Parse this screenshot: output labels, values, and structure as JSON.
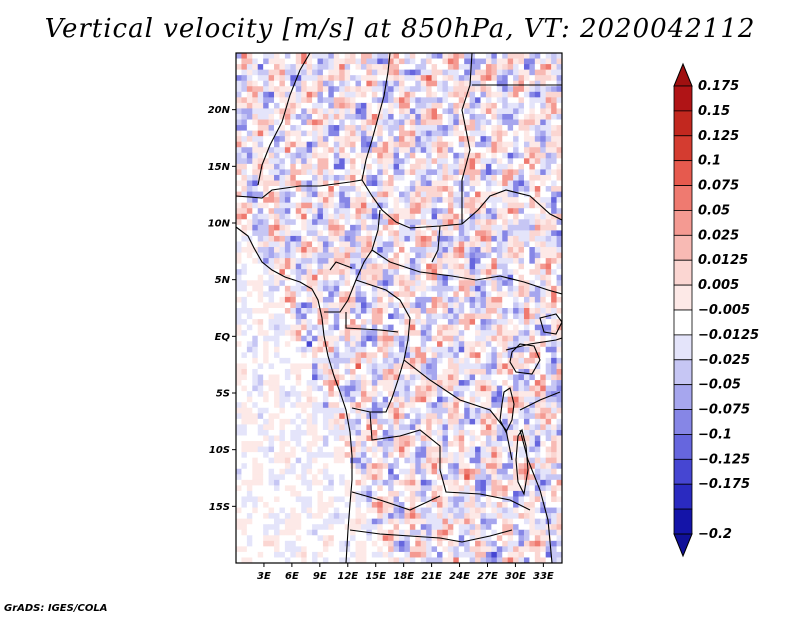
{
  "title": "Vertical velocity [m/s] at 850hPa, VT: 2020042112",
  "credit": "GrADS: IGES/COLA",
  "map": {
    "lon_range": [
      0,
      35
    ],
    "lat_range": [
      -20,
      25
    ],
    "lat_ticks": [
      {
        "lat": 20,
        "label": "20N"
      },
      {
        "lat": 15,
        "label": "15N"
      },
      {
        "lat": 10,
        "label": "10N"
      },
      {
        "lat": 5,
        "label": "5N"
      },
      {
        "lat": 0,
        "label": "EQ"
      },
      {
        "lat": -5,
        "label": "5S"
      },
      {
        "lat": -10,
        "label": "10S"
      },
      {
        "lat": -15,
        "label": "15S"
      }
    ],
    "lon_ticks": [
      {
        "lon": 3,
        "label": "3E"
      },
      {
        "lon": 6,
        "label": "6E"
      },
      {
        "lon": 9,
        "label": "9E"
      },
      {
        "lon": 12,
        "label": "12E"
      },
      {
        "lon": 15,
        "label": "15E"
      },
      {
        "lon": 18,
        "label": "18E"
      },
      {
        "lon": 21,
        "label": "21E"
      },
      {
        "lon": 24,
        "label": "24E"
      },
      {
        "lon": 27,
        "label": "27E"
      },
      {
        "lon": 30,
        "label": "30E"
      },
      {
        "lon": 33,
        "label": "33E"
      }
    ]
  },
  "colorbar": {
    "entries": [
      {
        "label": "0.175",
        "color": "#b01416"
      },
      {
        "label": "0.15",
        "color": "#c2281f"
      },
      {
        "label": "0.125",
        "color": "#d43c30"
      },
      {
        "label": "0.1",
        "color": "#e65a4e"
      },
      {
        "label": "0.075",
        "color": "#ef7a70"
      },
      {
        "label": "0.05",
        "color": "#f49a92"
      },
      {
        "label": "0.025",
        "color": "#f8bab4"
      },
      {
        "label": "0.0125",
        "color": "#fbd6d2"
      },
      {
        "label": "0.005",
        "color": "#fde9e7"
      },
      {
        "label": "−0.005",
        "color": "#ffffff"
      },
      {
        "label": "−0.0125",
        "color": "#e4e4fa"
      },
      {
        "label": "−0.025",
        "color": "#c6c6f4"
      },
      {
        "label": "−0.05",
        "color": "#a6a6ee"
      },
      {
        "label": "−0.075",
        "color": "#8686e6"
      },
      {
        "label": "−0.1",
        "color": "#6666de"
      },
      {
        "label": "−0.125",
        "color": "#4646d2"
      },
      {
        "label": "−0.175",
        "color": "#2a2ac0"
      },
      {
        "label": "−0.2",
        "color": "#1414a8"
      }
    ],
    "top_color": "#a01010",
    "bottom_color": "#101098"
  }
}
